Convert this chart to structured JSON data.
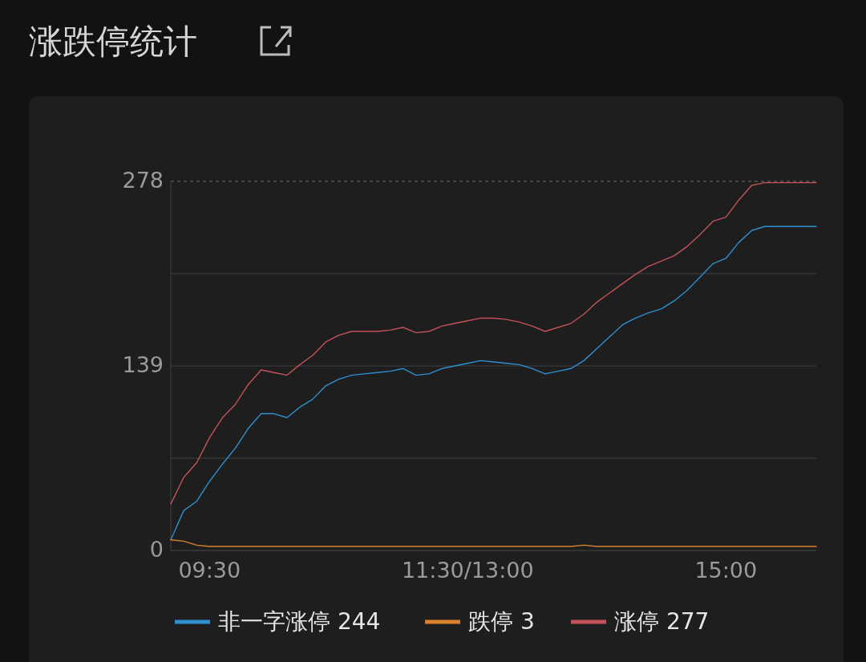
{
  "chart_data": {
    "type": "line",
    "title": "涨跌停统计",
    "categories": [
      null,
      null,
      null,
      "09:30",
      null,
      null,
      null,
      null,
      null,
      null,
      null,
      null,
      null,
      null,
      null,
      null,
      null,
      null,
      null,
      null,
      null,
      null,
      null,
      "11:30/13:00",
      null,
      null,
      null,
      null,
      null,
      null,
      null,
      null,
      null,
      null,
      null,
      null,
      null,
      null,
      null,
      null,
      null,
      null,
      null,
      "15:00",
      null,
      null,
      null,
      null,
      null,
      null,
      null
    ],
    "ylim": [
      0,
      278
    ],
    "yticks": [
      0,
      {
        "value": 69.5,
        "label": null
      },
      139,
      {
        "value": 208.5,
        "label": null
      },
      278
    ],
    "grid": "y",
    "legend": "bottom",
    "series": [
      {
        "name": "非一字涨停 244",
        "color": "#2f8fcf",
        "values": [
          8,
          30,
          37,
          52,
          65,
          77,
          92,
          103,
          103,
          100,
          108,
          114,
          124,
          129,
          132,
          133,
          134,
          135,
          137,
          132,
          133,
          137,
          139,
          141,
          143,
          142,
          141,
          140,
          137,
          133,
          135,
          137,
          143,
          152,
          161,
          170,
          175,
          179,
          182,
          188,
          196,
          206,
          216,
          220,
          232,
          241,
          244,
          244,
          244,
          244,
          244
        ]
      },
      {
        "name": "跌停 3",
        "color": "#d9822b",
        "values": [
          8,
          7,
          4,
          3,
          3,
          3,
          3,
          3,
          3,
          3,
          3,
          3,
          3,
          3,
          3,
          3,
          3,
          3,
          3,
          3,
          3,
          3,
          3,
          3,
          3,
          3,
          3,
          3,
          3,
          3,
          3,
          3,
          4,
          3,
          3,
          3,
          3,
          3,
          3,
          3,
          3,
          3,
          3,
          3,
          3,
          3,
          3,
          3,
          3,
          3,
          3
        ]
      },
      {
        "name": "涨停 277",
        "color": "#c4525a",
        "values": [
          35,
          55,
          66,
          85,
          100,
          110,
          125,
          136,
          134,
          132,
          140,
          147,
          157,
          162,
          165,
          165,
          165,
          166,
          168,
          164,
          165,
          169,
          171,
          173,
          175,
          175,
          174,
          172,
          169,
          165,
          168,
          171,
          178,
          187,
          194,
          201,
          208,
          214,
          218,
          222,
          229,
          238,
          248,
          251,
          264,
          275,
          277,
          277,
          277,
          277,
          277
        ]
      }
    ]
  }
}
